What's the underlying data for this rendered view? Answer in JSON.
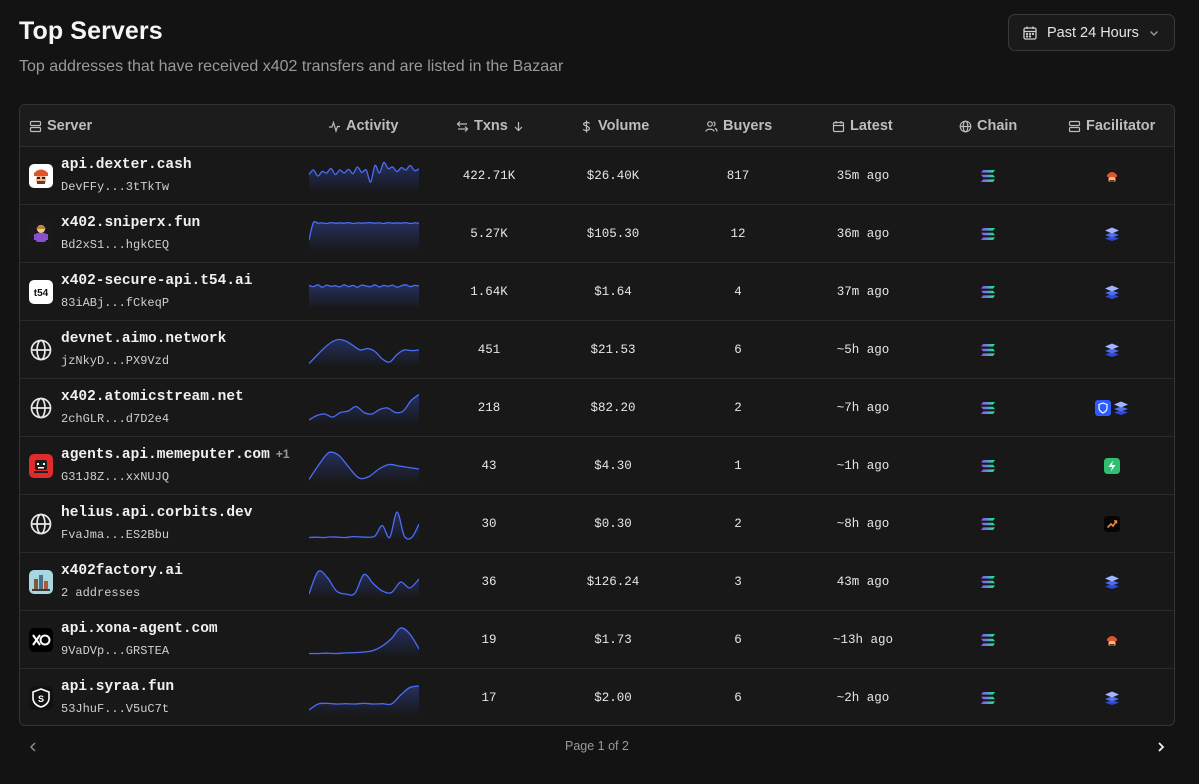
{
  "header": {
    "title": "Top Servers",
    "subtitle": "Top addresses that have received x402 transfers and are listed in the Bazaar",
    "range_label": "Past 24 Hours"
  },
  "columns": {
    "server": "Server",
    "activity": "Activity",
    "txns": "Txns",
    "volume": "Volume",
    "buyers": "Buyers",
    "latest": "Latest",
    "chain": "Chain",
    "facilitator": "Facilitator"
  },
  "rows": [
    {
      "name": "api.dexter.cash",
      "extra": "",
      "address": "DevFFy...3tTkTw",
      "txns": "422.71K",
      "volume": "$26.40K",
      "buyers": "817",
      "latest": "35m ago",
      "avatar": "dexter-avatar",
      "facilitator": [
        "dexter-facilitator-icon"
      ],
      "activity": [
        0.55,
        0.7,
        0.5,
        0.65,
        0.6,
        0.75,
        0.55,
        0.7,
        0.6,
        0.72,
        0.58,
        0.8,
        0.62,
        0.7,
        0.3,
        0.85,
        0.6,
        0.95,
        0.75,
        0.8,
        0.65,
        0.78,
        0.7,
        0.85,
        0.68,
        0.74
      ]
    },
    {
      "name": "x402.sniperx.fun",
      "extra": "",
      "address": "Bd2xS1...hgkCEQ",
      "txns": "5.27K",
      "volume": "$105.30",
      "buyers": "12",
      "latest": "36m ago",
      "avatar": "sniperx-avatar",
      "facilitator": [
        "coinbase-stack-icon"
      ],
      "activity": [
        0.3,
        0.88,
        0.86,
        0.87,
        0.85,
        0.88,
        0.86,
        0.87,
        0.86,
        0.88,
        0.85,
        0.87,
        0.86,
        0.87,
        0.88,
        0.86,
        0.87,
        0.85,
        0.88,
        0.86,
        0.87,
        0.86,
        0.88,
        0.85,
        0.87,
        0.86
      ]
    },
    {
      "name": "x402-secure-api.t54.ai",
      "extra": "",
      "address": "83iABj...fCkeqP",
      "txns": "1.64K",
      "volume": "$1.64",
      "buyers": "4",
      "latest": "37m ago",
      "avatar": "t54-avatar",
      "facilitator": [
        "coinbase-stack-icon"
      ],
      "activity": [
        0.72,
        0.68,
        0.74,
        0.66,
        0.73,
        0.69,
        0.71,
        0.67,
        0.74,
        0.68,
        0.72,
        0.66,
        0.73,
        0.7,
        0.68,
        0.74,
        0.67,
        0.72,
        0.69,
        0.73,
        0.66,
        0.71,
        0.74,
        0.68,
        0.72,
        0.7
      ]
    },
    {
      "name": "devnet.aimo.network",
      "extra": "",
      "address": "jzNkyD...PX9Vzd",
      "txns": "451",
      "volume": "$21.53",
      "buyers": "6",
      "latest": "~5h ago",
      "avatar": "globe-avatar",
      "facilitator": [
        "coinbase-stack-icon"
      ],
      "activity": [
        0.05,
        0.3,
        0.55,
        0.75,
        0.85,
        0.8,
        0.65,
        0.5,
        0.55,
        0.45,
        0.2,
        0.1,
        0.35,
        0.5,
        0.48,
        0.5
      ]
    },
    {
      "name": "x402.atomicstream.net",
      "extra": "",
      "address": "2chGLR...d7D2e4",
      "txns": "218",
      "volume": "$82.20",
      "buyers": "2",
      "latest": "~7h ago",
      "avatar": "globe-avatar",
      "facilitator": [
        "shield-facilitator-icon",
        "coinbase-stack-icon"
      ],
      "activity": [
        0.1,
        0.25,
        0.3,
        0.2,
        0.35,
        0.4,
        0.55,
        0.35,
        0.3,
        0.45,
        0.5,
        0.35,
        0.4,
        0.75,
        0.95
      ]
    },
    {
      "name": "agents.api.memeputer.com",
      "extra": "+1",
      "address": "G31J8Z...xxNUJQ",
      "txns": "43",
      "volume": "$4.30",
      "buyers": "1",
      "latest": "~1h ago",
      "avatar": "memeputer-avatar",
      "facilitator": [
        "bolt-facilitator-icon"
      ],
      "activity": [
        0.05,
        0.55,
        0.95,
        0.85,
        0.45,
        0.1,
        0.15,
        0.4,
        0.55,
        0.5,
        0.45,
        0.4
      ]
    },
    {
      "name": "helius.api.corbits.dev",
      "extra": "",
      "address": "FvaJma...ES2Bbu",
      "txns": "30",
      "volume": "$0.30",
      "buyers": "2",
      "latest": "~8h ago",
      "avatar": "globe-avatar",
      "facilitator": [
        "corbits-facilitator-icon"
      ],
      "activity": [
        0.05,
        0.06,
        0.05,
        0.07,
        0.06,
        0.05,
        0.08,
        0.07,
        0.06,
        0.1,
        0.45,
        0.05,
        0.9,
        0.1,
        0.05,
        0.5
      ]
    },
    {
      "name": "x402factory.ai",
      "extra": "",
      "address": "2 addresses",
      "txns": "36",
      "volume": "$126.24",
      "buyers": "3",
      "latest": "43m ago",
      "avatar": "factory-avatar",
      "facilitator": [
        "coinbase-stack-icon"
      ],
      "activity": [
        0.1,
        0.85,
        0.65,
        0.2,
        0.1,
        0.12,
        0.75,
        0.45,
        0.2,
        0.15,
        0.5,
        0.3,
        0.6
      ]
    },
    {
      "name": "api.xona-agent.com",
      "extra": "",
      "address": "9VaDVp...GRSTEA",
      "txns": "19",
      "volume": "$1.73",
      "buyers": "6",
      "latest": "~13h ago",
      "avatar": "xona-avatar",
      "facilitator": [
        "dexter-facilitator-icon"
      ],
      "activity": [
        0.05,
        0.05,
        0.06,
        0.05,
        0.07,
        0.08,
        0.1,
        0.15,
        0.3,
        0.55,
        0.9,
        0.7,
        0.2
      ]
    },
    {
      "name": "api.syraa.fun",
      "extra": "",
      "address": "53JhuF...V5uC7t",
      "txns": "17",
      "volume": "$2.00",
      "buyers": "6",
      "latest": "~2h ago",
      "avatar": "syraa-avatar",
      "facilitator": [
        "coinbase-stack-icon"
      ],
      "activity": [
        0.1,
        0.3,
        0.32,
        0.3,
        0.31,
        0.3,
        0.32,
        0.3,
        0.31,
        0.3,
        0.6,
        0.85,
        0.9
      ]
    }
  ],
  "pagination": {
    "label": "Page 1 of 2"
  },
  "colors": {
    "background": "#131313",
    "accent_line": "#4a6cf7",
    "solana_gradient": [
      "#9945ff",
      "#14f195"
    ]
  }
}
